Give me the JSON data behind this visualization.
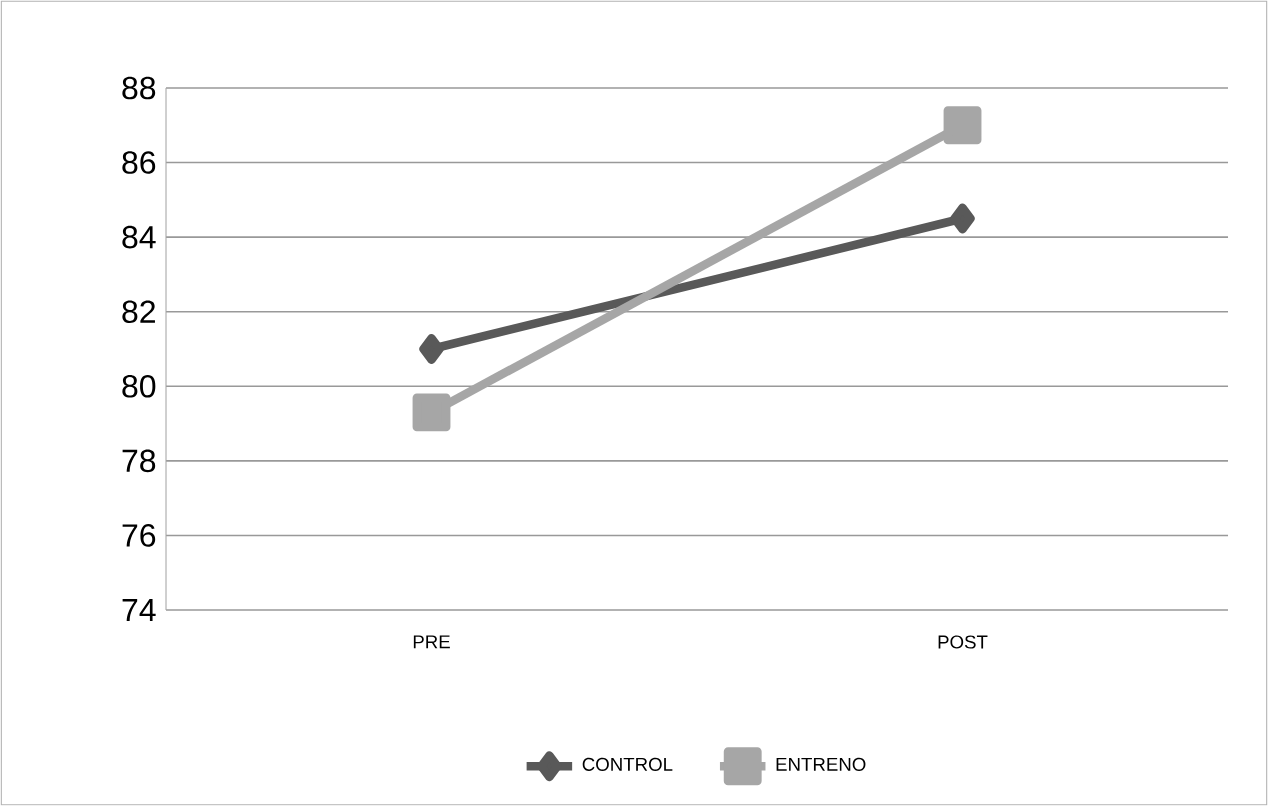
{
  "chart_data": {
    "type": "line",
    "categories": [
      "PRE",
      "POST"
    ],
    "series": [
      {
        "name": "CONTROL",
        "color": "#595959",
        "marker": "diamond",
        "values": [
          81.0,
          84.5
        ]
      },
      {
        "name": "ENTRENO",
        "color": "#a6a6a6",
        "marker": "square",
        "values": [
          79.3,
          87.0
        ]
      }
    ],
    "ylim": [
      74,
      88
    ],
    "yticks": [
      74,
      76,
      78,
      80,
      82,
      84,
      86,
      88
    ],
    "grid": "y",
    "legend": "bottom",
    "line_style": "solid"
  }
}
